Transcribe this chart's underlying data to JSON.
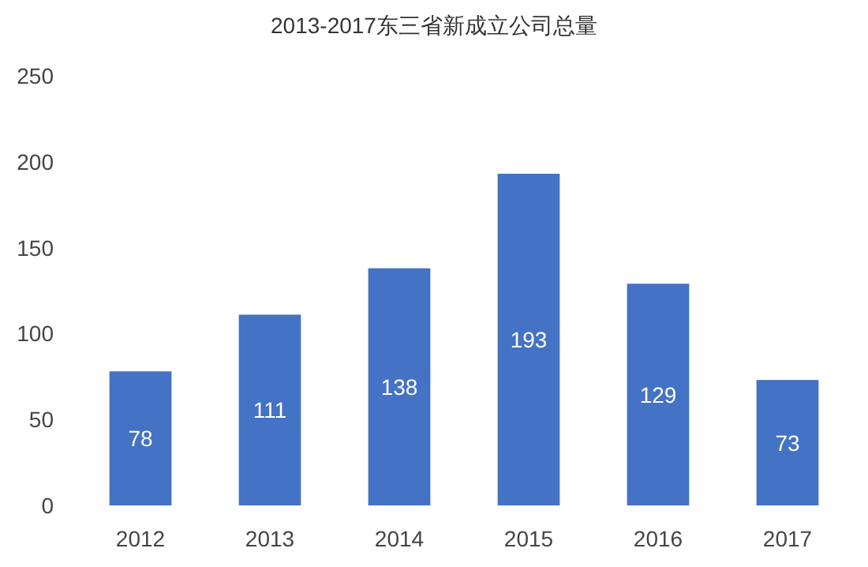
{
  "chart_data": {
    "type": "bar",
    "title": "2013-2017东三省新成立公司总量",
    "categories": [
      "2012",
      "2013",
      "2014",
      "2015",
      "2016",
      "2017"
    ],
    "values": [
      78,
      111,
      138,
      193,
      129,
      73
    ],
    "color": "#4472c4",
    "ylim": [
      0,
      250
    ],
    "yticks": [
      0,
      50,
      100,
      150,
      200,
      250
    ],
    "data_labels": true,
    "grid": false
  }
}
